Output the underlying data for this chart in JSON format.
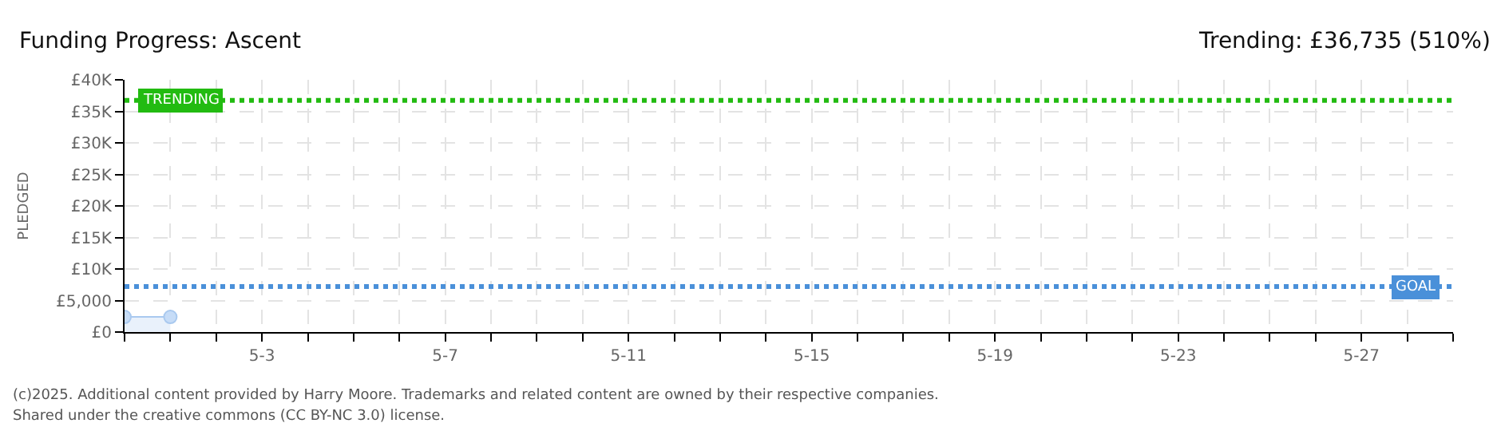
{
  "chart_data": {
    "type": "area",
    "title": "Funding Progress: Ascent",
    "subtitle": "Trending: £36,735 (510%)",
    "ylabel": "PLEDGED",
    "x": [
      "--04-30",
      "--05-01"
    ],
    "series": [
      {
        "color": "#a9c9ef",
        "values": [
          2400,
          2400
        ]
      }
    ],
    "marker": "circle",
    "xlim": [
      "--04-30",
      "--05-29"
    ],
    "xticks": [
      {
        "value": "--04-30",
        "label": null
      },
      {
        "value": "--05-01",
        "label": null
      },
      {
        "value": "--05-02",
        "label": null
      },
      {
        "value": "--05-03",
        "label": "5-3"
      },
      {
        "value": "--05-04",
        "label": null
      },
      {
        "value": "--05-05",
        "label": null
      },
      {
        "value": "--05-06",
        "label": null
      },
      {
        "value": "--05-07",
        "label": "5-7"
      },
      {
        "value": "--05-08",
        "label": null
      },
      {
        "value": "--05-09",
        "label": null
      },
      {
        "value": "--05-10",
        "label": null
      },
      {
        "value": "--05-11",
        "label": "5-11"
      },
      {
        "value": "--05-12",
        "label": null
      },
      {
        "value": "--05-13",
        "label": null
      },
      {
        "value": "--05-14",
        "label": null
      },
      {
        "value": "--05-15",
        "label": "5-15"
      },
      {
        "value": "--05-16",
        "label": null
      },
      {
        "value": "--05-17",
        "label": null
      },
      {
        "value": "--05-18",
        "label": null
      },
      {
        "value": "--05-19",
        "label": "5-19"
      },
      {
        "value": "--05-20",
        "label": null
      },
      {
        "value": "--05-21",
        "label": null
      },
      {
        "value": "--05-22",
        "label": null
      },
      {
        "value": "--05-23",
        "label": "5-23"
      },
      {
        "value": "--05-24",
        "label": null
      },
      {
        "value": "--05-25",
        "label": null
      },
      {
        "value": "--05-26",
        "label": null
      },
      {
        "value": "--05-27",
        "label": "5-27"
      },
      {
        "value": "--05-28",
        "label": null
      },
      {
        "value": "--05-29",
        "label": null
      }
    ],
    "ylim": [
      0,
      40000
    ],
    "yticks": [
      {
        "value": 0,
        "label": "£0"
      },
      {
        "value": 5000,
        "label": "£5,000"
      },
      {
        "value": 10000,
        "label": "£10K"
      },
      {
        "value": 15000,
        "label": "£15K"
      },
      {
        "value": 20000,
        "label": "£20K"
      },
      {
        "value": 25000,
        "label": "£25K"
      },
      {
        "value": 30000,
        "label": "£30K"
      },
      {
        "value": 35000,
        "label": "£35K"
      },
      {
        "value": 40000,
        "label": "£40K"
      }
    ],
    "grid": true,
    "ref_lines": [
      {
        "axis": "y",
        "value": 36735,
        "label": "TRENDING",
        "color": "#22bb11",
        "line_style": "dotted"
      },
      {
        "axis": "y",
        "value": 7200,
        "label": "GOAL",
        "color": "#4a90d9",
        "line_style": "dotted"
      }
    ],
    "annotations": [
      "(c)2025. Additional content provided by Harry Moore. Trademarks and related content are owned by their respective companies.",
      "Shared under the creative commons (CC BY-NC 3.0) license."
    ]
  }
}
